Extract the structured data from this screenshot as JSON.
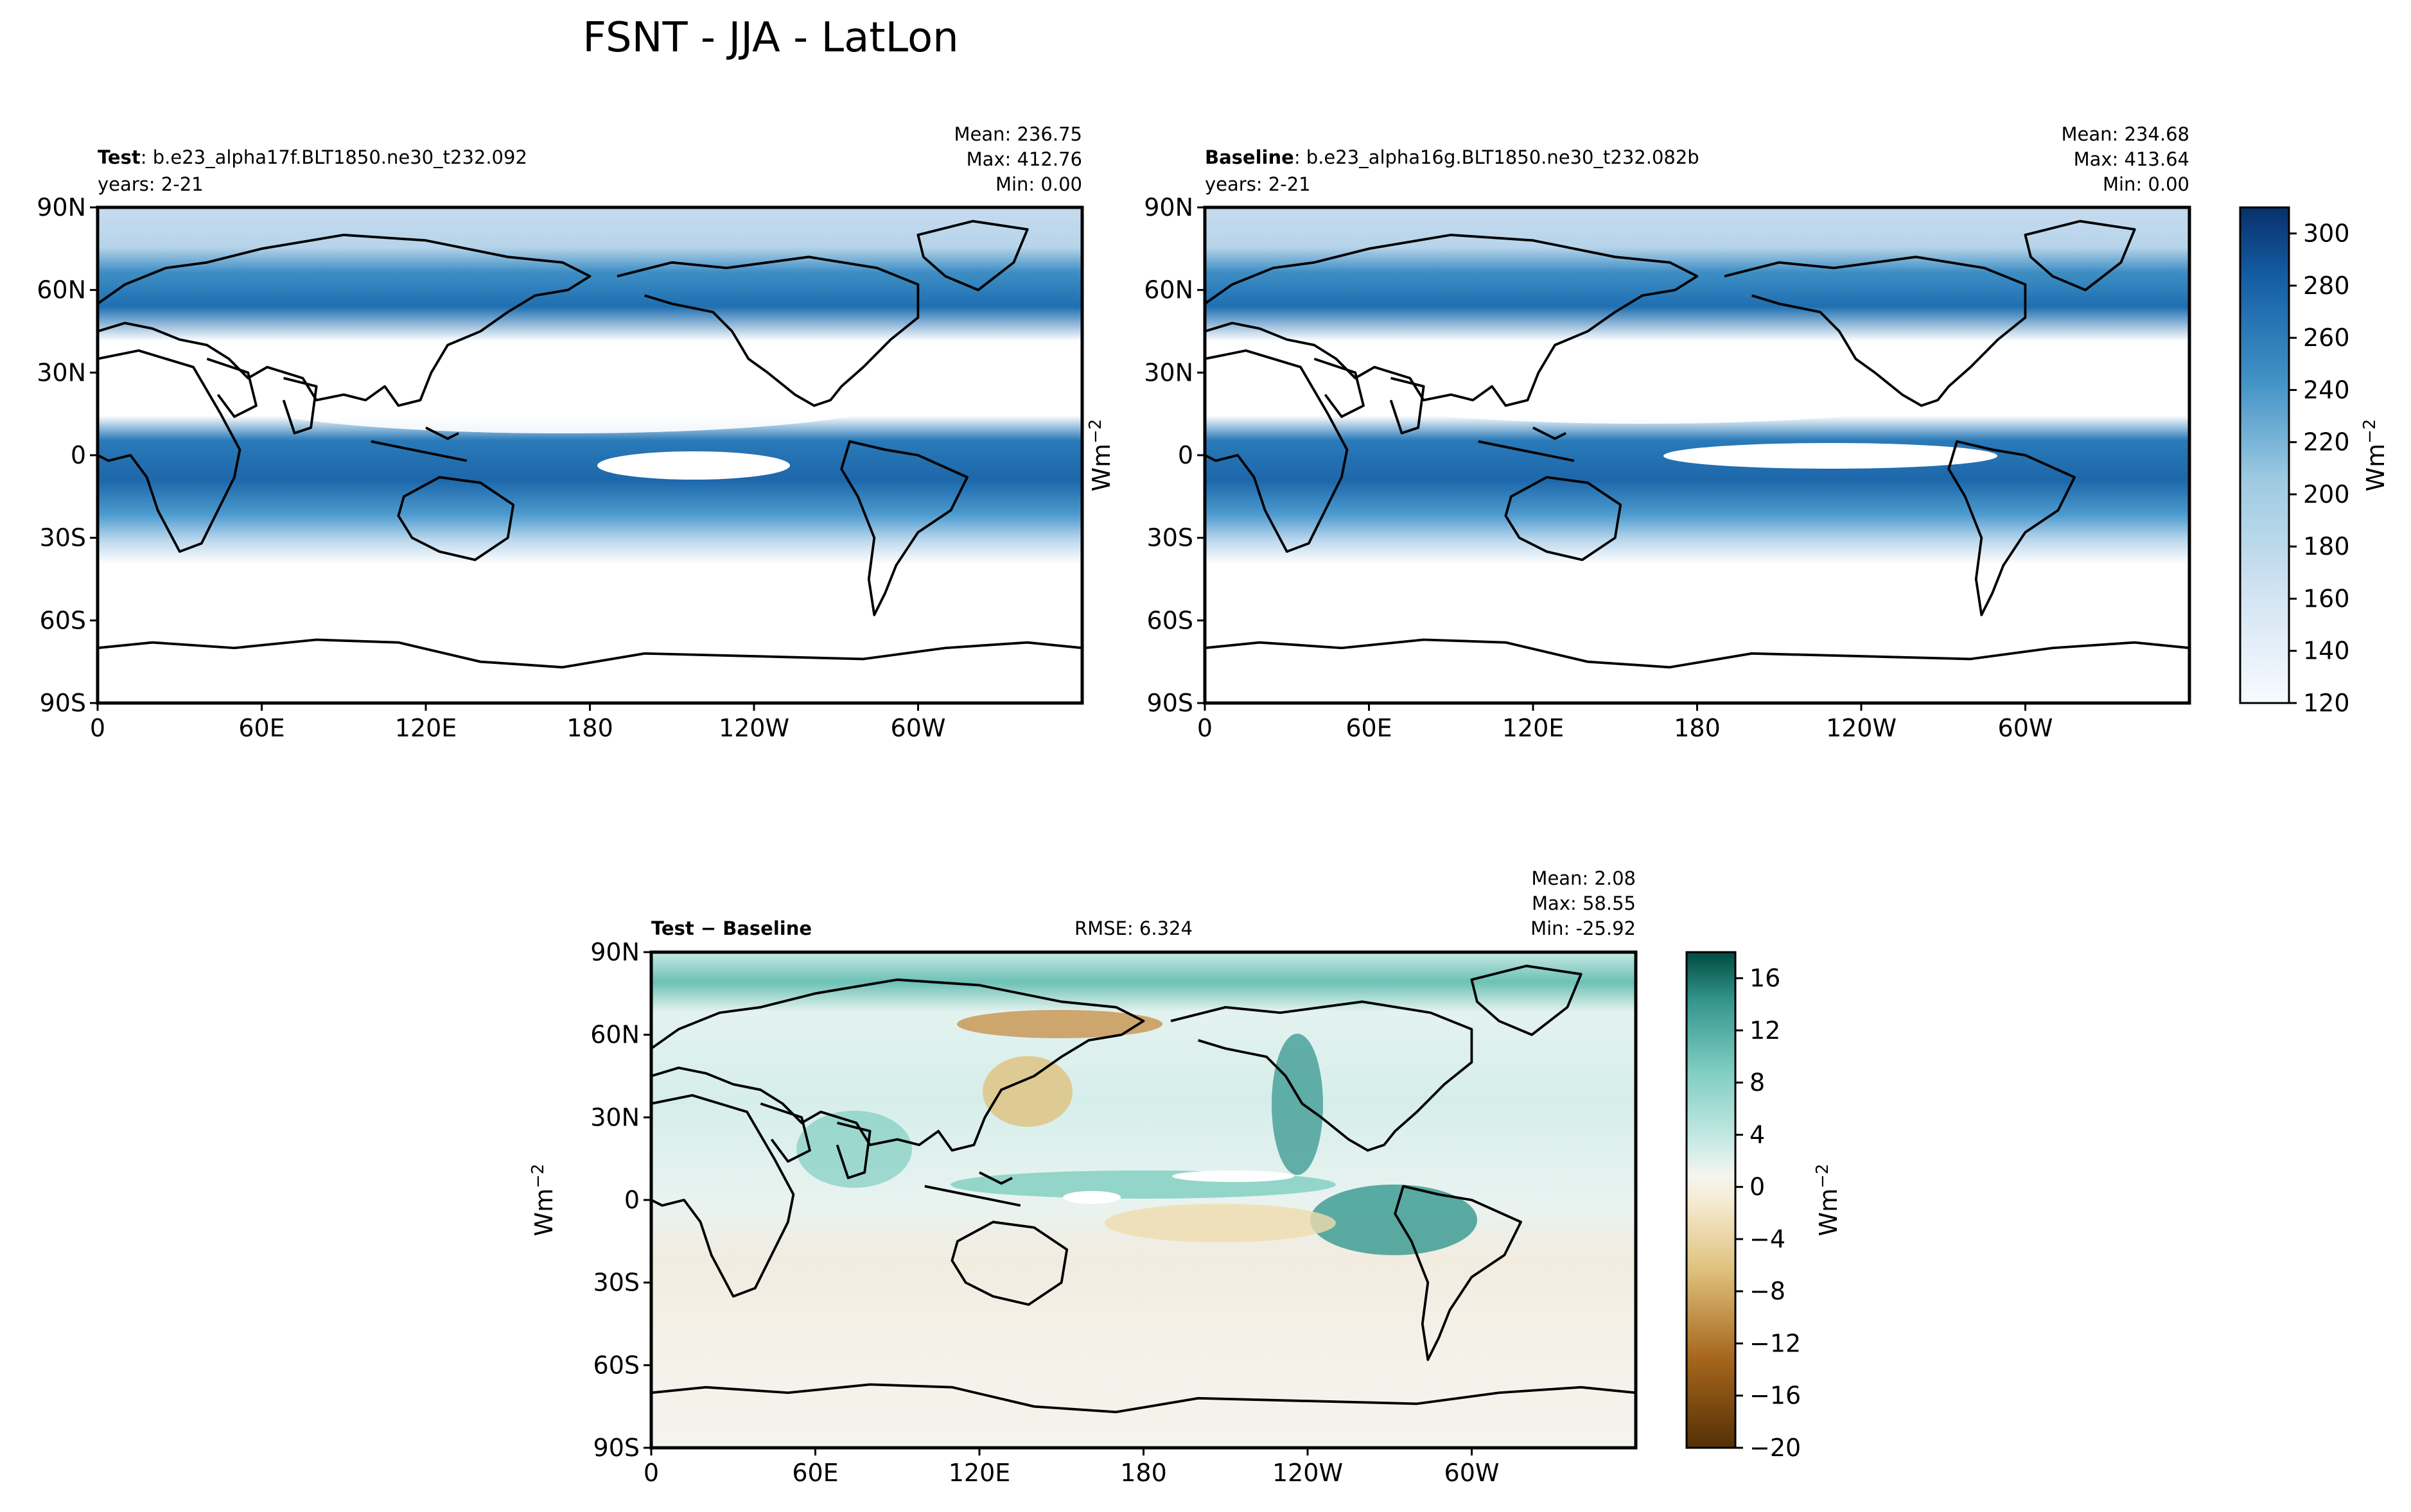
{
  "figure": {
    "title": "FSNT - JJA - LatLon"
  },
  "colors": {
    "blues": [
      "#f7fbff",
      "#e6f0fa",
      "#d6e6f4",
      "#c6dbef",
      "#b2d2e8",
      "#9ecae1",
      "#84bcdb",
      "#6baed6",
      "#559fcd",
      "#4292c6",
      "#3182bd",
      "#2171b5",
      "#1660a7",
      "#08519c",
      "#083d7f",
      "#08306b"
    ],
    "brbg": [
      "#543005",
      "#7d4a0d",
      "#a6661d",
      "#c8924d",
      "#dfc27d",
      "#efdcae",
      "#f6e8c3",
      "#f5f1e6",
      "#e6f2f0",
      "#c7eae5",
      "#a6dbd3",
      "#80cdc1",
      "#5ab4a9",
      "#35978f",
      "#1a7a72",
      "#01665e",
      "#004a40"
    ],
    "land_outline": "#000000"
  },
  "chart_data": [
    {
      "type": "heatmap",
      "role": "test",
      "label_bold": "Test",
      "label_rest": ": b.e23_alpha17f.BLT1850.ne30_t232.092",
      "years": "years: 2-21",
      "stats": {
        "mean": "Mean: 236.75",
        "max": "Max: 412.76",
        "min": "Min:  0.00"
      },
      "x_ticks": [
        "0",
        "60E",
        "120E",
        "180",
        "120W",
        "60W"
      ],
      "y_ticks": [
        "90N",
        "60N",
        "30N",
        "0",
        "30S",
        "60S",
        "90S"
      ],
      "xlim": [
        0,
        360
      ],
      "ylim": [
        -90,
        90
      ]
    },
    {
      "type": "heatmap",
      "role": "baseline",
      "label_bold": "Baseline",
      "label_rest": ": b.e23_alpha16g.BLT1850.ne30_t232.082b",
      "years": "years: 2-21",
      "stats": {
        "mean": "Mean: 234.68",
        "max": "Max: 413.64",
        "min": "Min:  0.00"
      },
      "x_ticks": [
        "0",
        "60E",
        "120E",
        "180",
        "120W",
        "60W"
      ],
      "y_ticks": [
        "90N",
        "60N",
        "30N",
        "0",
        "30S",
        "60S",
        "90S"
      ],
      "xlim": [
        0,
        360
      ],
      "ylim": [
        -90,
        90
      ],
      "colorbar": {
        "ticks": [
          "300",
          "280",
          "260",
          "240",
          "220",
          "200",
          "180",
          "160",
          "140",
          "120"
        ],
        "range": [
          120,
          310
        ],
        "unit_base": "Wm",
        "unit_exp": "−2"
      }
    },
    {
      "type": "heatmap",
      "role": "difference",
      "label": "Test − Baseline",
      "rmse": "RMSE: 6.324",
      "stats": {
        "mean": "Mean:  2.08",
        "max": "Max: 58.55",
        "min": "Min: -25.92"
      },
      "x_ticks": [
        "0",
        "60E",
        "120E",
        "180",
        "120W",
        "60W"
      ],
      "y_ticks": [
        "90N",
        "60N",
        "30N",
        "0",
        "30S",
        "60S",
        "90S"
      ],
      "xlim": [
        0,
        360
      ],
      "ylim": [
        -90,
        90
      ],
      "ylabel_base": "Wm",
      "ylabel_exp": "−2",
      "colorbar": {
        "ticks": [
          "16",
          "12",
          "8",
          "4",
          "0",
          "−4",
          "−8",
          "−12",
          "−16",
          "−20"
        ],
        "range": [
          -20,
          18
        ],
        "unit_base": "Wm",
        "unit_exp": "−2"
      }
    }
  ],
  "shared_ylabel": {
    "base": "Wm",
    "exp": "−2"
  }
}
